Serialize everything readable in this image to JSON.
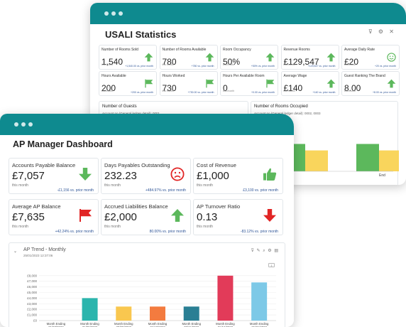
{
  "usali": {
    "title": "USALI Statistics",
    "cards": [
      {
        "label": "Number of Rooms Sold",
        "value": "1,540",
        "sub": "this month",
        "change": "+1,540.00 vs. prior month",
        "icon": "arrow-up-green-icon"
      },
      {
        "label": "Number of Rooms Available",
        "value": "780",
        "sub": "this month",
        "change": "+780 vs. prior month",
        "icon": "arrow-up-green-icon"
      },
      {
        "label": "Room Occupancy",
        "value": "50%",
        "sub": "this month",
        "change": "+50% vs. prior month",
        "icon": "arrow-up-green-icon"
      },
      {
        "label": "Revenue Rooms",
        "value": "£129,547",
        "sub": "this month",
        "change": "+129,547 vs. prior month",
        "icon": "arrow-up-green-icon"
      },
      {
        "label": "Average Daily Rate",
        "value": "£20",
        "sub": "this month",
        "change": "+20 vs. prior month",
        "icon": "smiley-face-icon"
      },
      {
        "label": "Hours Available",
        "value": "200",
        "sub": "this month",
        "change": "+200 vs. prior month",
        "icon": "flag-green-icon"
      },
      {
        "label": "Hours Worked",
        "value": "730",
        "sub": "this month",
        "change": "+730.00 vs. prior month",
        "icon": "flag-green-icon"
      },
      {
        "label": "Hours Per Available Room",
        "value": "0",
        "sub": "this month",
        "change": "+0.00 vs. prior month",
        "icon": "flag-green-icon"
      },
      {
        "label": "Average Wage",
        "value": "£140",
        "sub": "this month",
        "change": "+140 vs. prior month",
        "icon": "arrow-up-green-icon"
      },
      {
        "label": "Guest Ranking The Brand",
        "value": "8.00",
        "sub": "this month",
        "change": "+8.00 vs. prior month",
        "icon": "arrow-up-green-icon"
      }
    ],
    "guests_title": "Number of Guests",
    "guests_sub": "Account no (General ledger detail): 0001",
    "rooms_title": "Number of Rooms Occupied",
    "rooms_sub": "Account no (General ledger detail): 0002, 0003",
    "rooms_xlabel": "End",
    "rooms_bars": [
      {
        "green": 0.55,
        "yellow": 0.42
      },
      {
        "green": 0.55,
        "yellow": 0.42
      }
    ],
    "colors": {
      "green": "#5cb85c",
      "yellow": "#f9d55c"
    }
  },
  "ap": {
    "title": "AP Manager Dashboard",
    "cards": [
      {
        "label": "Accounts Payable Balance",
        "value": "£7,057",
        "sub": "this month",
        "change": "-£1,156 vs. prior month",
        "icon": "arrow-down-green-icon"
      },
      {
        "label": "Days Payables Outstanding",
        "value": "232.23",
        "sub": "this month",
        "change": "+484.97% vs. prior month",
        "icon": "sad-face-icon"
      },
      {
        "label": "Cost of Revenue",
        "value": "£1,000",
        "sub": "this month",
        "change": "£3,100 vs. prior month",
        "icon": "thumbs-up-icon"
      },
      {
        "label": "Average AP Balance",
        "value": "£7,635",
        "sub": "this month",
        "change": "+42.24% vs. prior month",
        "icon": "flag-red-icon"
      },
      {
        "label": "Accrued Liabilities Balance",
        "value": "£2,000",
        "sub": "this month",
        "change": "80.00% vs. prior month",
        "icon": "arrow-up-green-icon"
      },
      {
        "label": "AP Turnover Ratio",
        "value": "0.13",
        "sub": "this month",
        "change": "-83.12% vs. prior month",
        "icon": "arrow-down-red-icon"
      }
    ],
    "trend": {
      "title": "AP Trend - Monthly",
      "timestamp": "25/01/2023 12:37:06"
    }
  },
  "chart_data": {
    "type": "bar",
    "title": "AP Trend - Monthly",
    "xlabel": "",
    "ylabel": "",
    "categories": [
      "Month Ending 31/07/2022",
      "Month Ending 31/08/2022",
      "Month Ending 30/09/2022",
      "Month Ending 31/10/2022",
      "Month Ending 30/11/2022",
      "Month Ending 31/12/2022",
      "Month Ending 31/01/2023"
    ],
    "values": [
      0,
      4000,
      2500,
      2500,
      2500,
      8000,
      6800
    ],
    "colors": [
      "#2bb5ad",
      "#2bb5ad",
      "#f9c74f",
      "#f37b3f",
      "#2a7f94",
      "#e23b59",
      "#7dc9e7"
    ],
    "ylim": [
      0,
      10000
    ],
    "yticks": [
      "£0",
      "£1,000",
      "£2,000",
      "£3,000",
      "£4,000",
      "£5,000",
      "£6,000",
      "£7,000",
      "£8,000"
    ],
    "grid": true
  }
}
